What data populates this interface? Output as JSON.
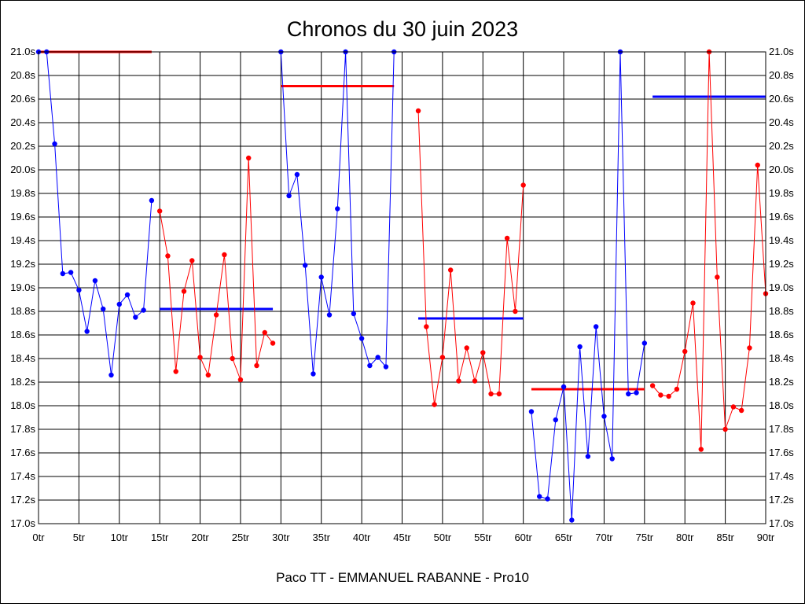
{
  "chart_data": {
    "type": "line",
    "title": "Chronos du 30 juin 2023",
    "footer": "Paco TT - EMMANUEL RABANNE - Pro10",
    "x_ticks": [
      "0tr",
      "5tr",
      "10tr",
      "15tr",
      "20tr",
      "25tr",
      "30tr",
      "35tr",
      "40tr",
      "45tr",
      "50tr",
      "55tr",
      "60tr",
      "65tr",
      "70tr",
      "75tr",
      "80tr",
      "85tr",
      "90tr"
    ],
    "y_ticks": [
      "17.0s",
      "17.2s",
      "17.4s",
      "17.6s",
      "17.8s",
      "18.0s",
      "18.2s",
      "18.4s",
      "18.6s",
      "18.8s",
      "19.0s",
      "19.2s",
      "19.4s",
      "19.6s",
      "19.8s",
      "20.0s",
      "20.2s",
      "20.4s",
      "20.6s",
      "20.8s",
      "21.0s"
    ],
    "xlim": [
      0,
      90
    ],
    "ylim": [
      17.0,
      21.0
    ],
    "grid": true,
    "series": [
      {
        "color": "#0000ff",
        "x": [
          0,
          1,
          2,
          3,
          4,
          5,
          6,
          7,
          8,
          9,
          10,
          11,
          12,
          13,
          14
        ],
        "y": [
          21.0,
          21.0,
          20.22,
          19.12,
          19.13,
          18.98,
          18.63,
          19.06,
          18.82,
          18.26,
          18.86,
          18.94,
          18.75,
          18.81,
          19.74
        ]
      },
      {
        "color": "#ff0000",
        "x": [
          15,
          16,
          17,
          18,
          19,
          20,
          21,
          22,
          23,
          24,
          25,
          26,
          27,
          28,
          29
        ],
        "y": [
          19.65,
          19.27,
          18.29,
          18.97,
          19.23,
          18.41,
          18.26,
          18.77,
          19.28,
          18.4,
          18.22,
          20.1,
          18.34,
          18.62,
          18.53
        ]
      },
      {
        "color": "#0000ff",
        "x": [
          30,
          31,
          32,
          33,
          34,
          35,
          36,
          37,
          38,
          39,
          40,
          41,
          42,
          43,
          44
        ],
        "y": [
          21.0,
          19.78,
          19.96,
          19.19,
          18.27,
          19.09,
          18.77,
          19.67,
          21.0,
          18.78,
          18.57,
          18.34,
          18.41,
          18.33,
          21.0
        ]
      },
      {
        "color": "#ff0000",
        "x": [
          47,
          48,
          49,
          50,
          51,
          52,
          53,
          54,
          55,
          56,
          57,
          58,
          59,
          60
        ],
        "y": [
          20.5,
          18.67,
          18.01,
          18.41,
          19.15,
          18.21,
          18.49,
          18.21,
          18.45,
          18.1,
          18.1,
          19.42,
          18.8,
          19.87
        ]
      },
      {
        "color": "#0000ff",
        "x": [
          61,
          62,
          63,
          64,
          65,
          66,
          67,
          68,
          69,
          70,
          71,
          72,
          73,
          74,
          75
        ],
        "y": [
          17.95,
          17.23,
          17.21,
          17.88,
          18.16,
          17.03,
          18.5,
          17.57,
          18.67,
          17.91,
          17.55,
          21.0,
          18.1,
          18.11,
          18.53
        ]
      },
      {
        "color": "#ff0000",
        "x": [
          76,
          77,
          78,
          79,
          80,
          81,
          82,
          83,
          84,
          85,
          86,
          87,
          88,
          89,
          90
        ],
        "y": [
          18.17,
          18.09,
          18.08,
          18.14,
          18.46,
          18.87,
          17.63,
          21.0,
          19.09,
          17.8,
          17.99,
          17.96,
          18.49,
          20.04,
          18.95
        ]
      }
    ],
    "averages": [
      {
        "color": "#ff0000",
        "x": [
          0,
          14
        ],
        "y": 21.0
      },
      {
        "color": "#0000ff",
        "x": [
          15,
          29
        ],
        "y": 18.82
      },
      {
        "color": "#ff0000",
        "x": [
          30,
          44
        ],
        "y": 20.71
      },
      {
        "color": "#0000ff",
        "x": [
          47,
          60
        ],
        "y": 18.74
      },
      {
        "color": "#ff0000",
        "x": [
          61,
          75
        ],
        "y": 18.14
      },
      {
        "color": "#0000ff",
        "x": [
          76,
          90
        ],
        "y": 20.62
      }
    ]
  }
}
